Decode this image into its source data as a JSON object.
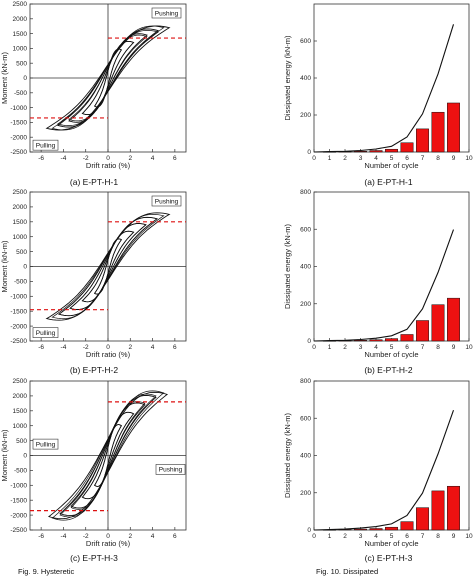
{
  "figure_captions": {
    "left": "Fig. 9. Hysteretic",
    "right": "Fig. 10. Dissipated"
  },
  "chart_data": [
    {
      "type": "line",
      "caption": "(a) E-PT-H-1",
      "xlabel": "Drift ratio (%)",
      "ylabel": "Moment (kN-m)",
      "xlim": [
        -7,
        7
      ],
      "ylim": [
        -2500,
        2500
      ],
      "xticks": [
        -6,
        -4,
        -2,
        0,
        2,
        4,
        6
      ],
      "yticks": [
        2500,
        2000,
        1500,
        1000,
        500,
        0,
        -500,
        -1000,
        -1500,
        -2000,
        -2500
      ],
      "annotations": [
        "Pushing",
        "Pulling"
      ],
      "reference_lines": [
        1350,
        -1350
      ],
      "loops": [
        [
          1.2,
          950,
          700
        ],
        [
          2.3,
          1200,
          900
        ],
        [
          3.5,
          1450,
          1100
        ],
        [
          4.5,
          1600,
          1250
        ],
        [
          5.5,
          1700,
          1300
        ]
      ],
      "loops_neg": [
        [
          1.2,
          950,
          700
        ],
        [
          2.3,
          1200,
          900
        ],
        [
          3.5,
          1400,
          1100
        ],
        [
          4.5,
          1550,
          1250
        ],
        [
          5.0,
          1700,
          1300
        ]
      ]
    },
    {
      "type": "line",
      "caption": "(b) E-PT-H-2",
      "xlabel": "Drift ratio (%)",
      "ylabel": "Moment (kN-m)",
      "xlim": [
        -7,
        7
      ],
      "ylim": [
        -2500,
        2500
      ],
      "xticks": [
        -6,
        -4,
        -2,
        0,
        2,
        4,
        6
      ],
      "yticks": [
        2500,
        2000,
        1500,
        1000,
        500,
        0,
        -500,
        -1000,
        -1500,
        -2000,
        -2500
      ],
      "annotations": [
        "Pushing",
        "Pulling"
      ],
      "reference_lines": [
        1500,
        -1450
      ],
      "loops": [
        [
          1.2,
          900,
          650
        ],
        [
          2.3,
          1150,
          850
        ],
        [
          3.4,
          1400,
          1050
        ],
        [
          4.4,
          1600,
          1200
        ],
        [
          5.5,
          1750,
          1300
        ]
      ],
      "loops_neg": [
        [
          1.2,
          900,
          650
        ],
        [
          2.3,
          1150,
          850
        ],
        [
          3.4,
          1400,
          1050
        ],
        [
          4.4,
          1600,
          1200
        ],
        [
          5.0,
          1700,
          1250
        ]
      ]
    },
    {
      "type": "line",
      "caption": "(c) E-PT-H-3",
      "xlabel": "Drift ratio (%)",
      "ylabel": "Moment (kN-m)",
      "xlim": [
        -7,
        7
      ],
      "ylim": [
        -2500,
        2500
      ],
      "xticks": [
        -6,
        -4,
        -2,
        0,
        2,
        4,
        6
      ],
      "yticks": [
        2500,
        2000,
        1500,
        1000,
        500,
        0,
        -500,
        -1000,
        -1500,
        -2000,
        -2500
      ],
      "annotations": [
        "Pushing",
        "Pulling"
      ],
      "reference_lines": [
        1800,
        -1850
      ],
      "loops": [
        [
          1.2,
          1000,
          800
        ],
        [
          2.3,
          1400,
          1100
        ],
        [
          3.3,
          1700,
          1350
        ],
        [
          4.3,
          1950,
          1500
        ],
        [
          5.3,
          2050,
          1600
        ]
      ],
      "loops_neg": [
        [
          1.2,
          1000,
          800
        ],
        [
          2.3,
          1400,
          1100
        ],
        [
          3.3,
          1750,
          1350
        ],
        [
          4.3,
          2000,
          1500
        ],
        [
          5.0,
          2100,
          1600
        ]
      ]
    },
    {
      "type": "bar",
      "caption": "(a) E-PT-H-1",
      "xlabel": "Number of cycle",
      "ylabel": "Dissipated energy (kN-m)",
      "categories": [
        1,
        2,
        3,
        4,
        5,
        6,
        7,
        8,
        9
      ],
      "values": [
        1,
        2,
        4,
        8,
        15,
        50,
        125,
        215,
        265
      ],
      "cumulative": [
        0,
        2,
        4,
        8,
        16,
        31,
        81,
        206,
        421,
        690
      ],
      "xlim": [
        0,
        10
      ],
      "ylim": [
        0,
        800
      ],
      "xticks": [
        0,
        1,
        2,
        3,
        4,
        5,
        6,
        7,
        8,
        9,
        10
      ],
      "yticks": [
        0,
        200,
        400,
        600
      ]
    },
    {
      "type": "bar",
      "caption": "(b) E-PT-H-2",
      "xlabel": "Number of cycle",
      "ylabel": "Dissipated energy (kN-m)",
      "categories": [
        1,
        2,
        3,
        4,
        5,
        6,
        7,
        8,
        9
      ],
      "values": [
        1,
        2,
        4,
        7,
        13,
        35,
        110,
        195,
        230
      ],
      "cumulative": [
        0,
        2,
        4,
        8,
        15,
        28,
        63,
        173,
        368,
        598
      ],
      "xlim": [
        0,
        10
      ],
      "ylim": [
        0,
        800
      ],
      "xticks": [
        0,
        1,
        2,
        3,
        4,
        5,
        6,
        7,
        8,
        9,
        10
      ],
      "yticks": [
        0,
        200,
        400,
        600,
        800
      ]
    },
    {
      "type": "bar",
      "caption": "(c) E-PT-H-3",
      "xlabel": "Number of cycle",
      "ylabel": "Dissipated energy (kN-m)",
      "categories": [
        1,
        2,
        3,
        4,
        5,
        6,
        7,
        8,
        9
      ],
      "values": [
        1,
        3,
        5,
        8,
        15,
        45,
        120,
        210,
        235
      ],
      "cumulative": [
        0,
        2,
        5,
        10,
        18,
        33,
        78,
        198,
        408,
        643
      ],
      "xlim": [
        0,
        10
      ],
      "ylim": [
        0,
        800
      ],
      "xticks": [
        0,
        1,
        2,
        3,
        4,
        5,
        6,
        7,
        8,
        9,
        10
      ],
      "yticks": [
        0,
        200,
        400,
        600,
        800
      ]
    }
  ]
}
